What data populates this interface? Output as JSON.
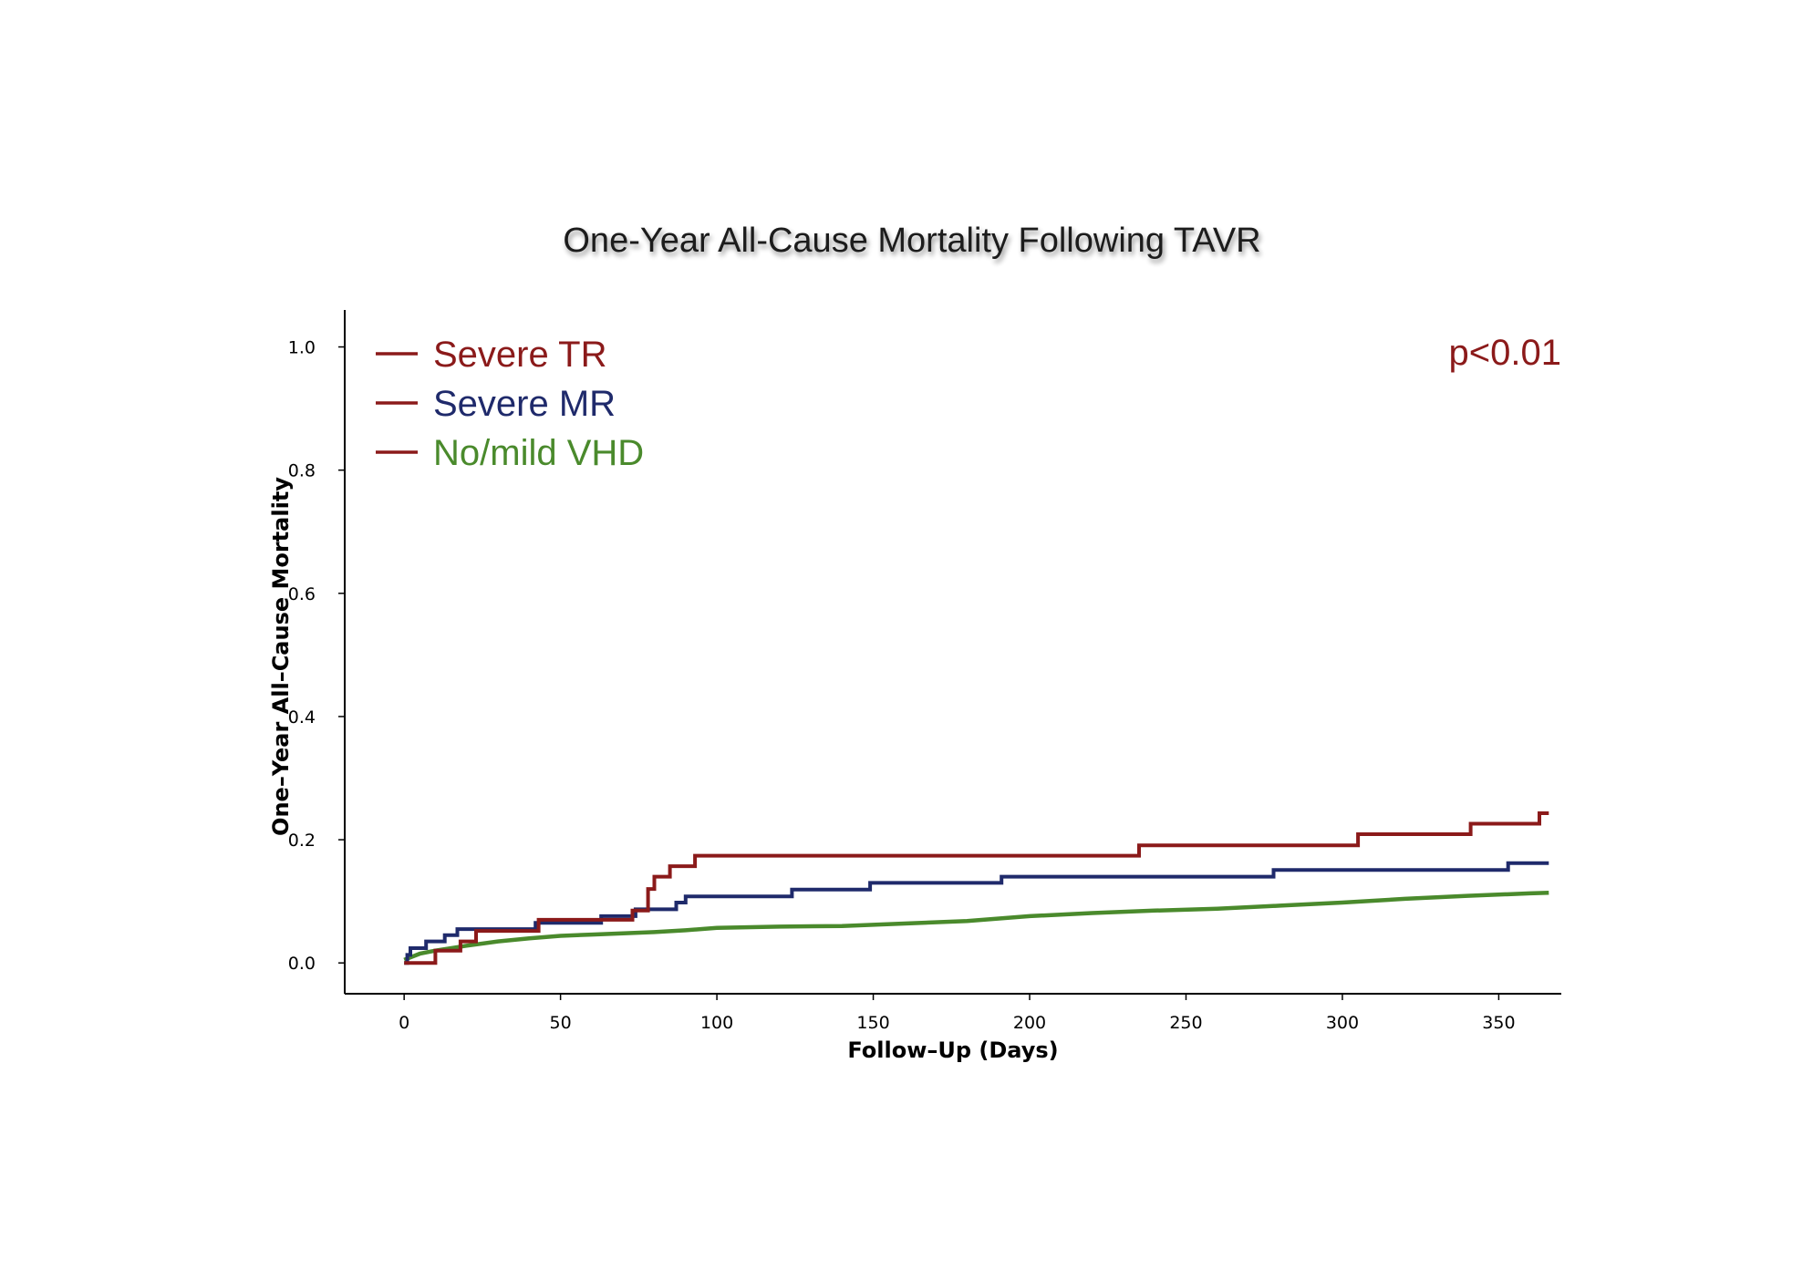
{
  "chart_data": {
    "type": "line",
    "title": "One-Year All-Cause Mortality Following TAVR",
    "xlabel": "Follow–Up (Days)",
    "ylabel": "One–Year All–Cause Mortality",
    "xlim": [
      -19,
      370
    ],
    "ylim": [
      -0.05,
      1.06
    ],
    "x_ticks": [
      0,
      50,
      100,
      150,
      200,
      250,
      300,
      350
    ],
    "y_ticks": [
      0.0,
      0.2,
      0.4,
      0.6,
      0.8,
      1.0
    ],
    "y_tick_labels": [
      "0.0",
      "0.2",
      "0.4",
      "0.6",
      "0.8",
      "1.0"
    ],
    "grid": false,
    "legend_position": "top-left",
    "annotation": "p<0.01",
    "series": [
      {
        "name": "Severe TR",
        "color": "#8b1a1a",
        "text_color": "#8b1a1a",
        "step": true,
        "points": [
          [
            0,
            0.0
          ],
          [
            10,
            0.0
          ],
          [
            10,
            0.02
          ],
          [
            18,
            0.02
          ],
          [
            18,
            0.035
          ],
          [
            23,
            0.035
          ],
          [
            23,
            0.052
          ],
          [
            43,
            0.052
          ],
          [
            43,
            0.07
          ],
          [
            73,
            0.07
          ],
          [
            73,
            0.085
          ],
          [
            78,
            0.085
          ],
          [
            78,
            0.12
          ],
          [
            80,
            0.12
          ],
          [
            80,
            0.14
          ],
          [
            85,
            0.14
          ],
          [
            85,
            0.157
          ],
          [
            93,
            0.157
          ],
          [
            93,
            0.174
          ],
          [
            235,
            0.174
          ],
          [
            235,
            0.191
          ],
          [
            305,
            0.191
          ],
          [
            305,
            0.209
          ],
          [
            341,
            0.209
          ],
          [
            341,
            0.226
          ],
          [
            363,
            0.226
          ],
          [
            363,
            0.243
          ],
          [
            366,
            0.243
          ]
        ]
      },
      {
        "name": "Severe MR",
        "color": "#1f2a6b",
        "text_color": "#1f2a6b",
        "step": true,
        "points": [
          [
            0,
            0.0
          ],
          [
            1,
            0.0
          ],
          [
            1,
            0.013
          ],
          [
            2,
            0.013
          ],
          [
            2,
            0.024
          ],
          [
            7,
            0.024
          ],
          [
            7,
            0.035
          ],
          [
            13,
            0.035
          ],
          [
            13,
            0.045
          ],
          [
            17,
            0.045
          ],
          [
            17,
            0.055
          ],
          [
            42,
            0.055
          ],
          [
            42,
            0.065
          ],
          [
            63,
            0.065
          ],
          [
            63,
            0.076
          ],
          [
            74,
            0.076
          ],
          [
            74,
            0.087
          ],
          [
            87,
            0.087
          ],
          [
            87,
            0.098
          ],
          [
            90,
            0.098
          ],
          [
            90,
            0.108
          ],
          [
            124,
            0.108
          ],
          [
            124,
            0.119
          ],
          [
            149,
            0.119
          ],
          [
            149,
            0.13
          ],
          [
            191,
            0.13
          ],
          [
            191,
            0.14
          ],
          [
            278,
            0.14
          ],
          [
            278,
            0.151
          ],
          [
            353,
            0.151
          ],
          [
            353,
            0.162
          ],
          [
            366,
            0.162
          ]
        ]
      },
      {
        "name": "No/mild VHD",
        "color": "#4a8a2c",
        "text_color": "#4a8a2c",
        "step": false,
        "points": [
          [
            0,
            0.005
          ],
          [
            5,
            0.015
          ],
          [
            10,
            0.02
          ],
          [
            20,
            0.028
          ],
          [
            30,
            0.035
          ],
          [
            40,
            0.04
          ],
          [
            50,
            0.044
          ],
          [
            60,
            0.046
          ],
          [
            70,
            0.048
          ],
          [
            80,
            0.05
          ],
          [
            90,
            0.053
          ],
          [
            100,
            0.057
          ],
          [
            120,
            0.059
          ],
          [
            140,
            0.06
          ],
          [
            160,
            0.064
          ],
          [
            180,
            0.068
          ],
          [
            200,
            0.076
          ],
          [
            220,
            0.081
          ],
          [
            240,
            0.085
          ],
          [
            260,
            0.088
          ],
          [
            280,
            0.093
          ],
          [
            300,
            0.098
          ],
          [
            320,
            0.104
          ],
          [
            340,
            0.109
          ],
          [
            360,
            0.113
          ],
          [
            366,
            0.114
          ]
        ]
      }
    ]
  }
}
